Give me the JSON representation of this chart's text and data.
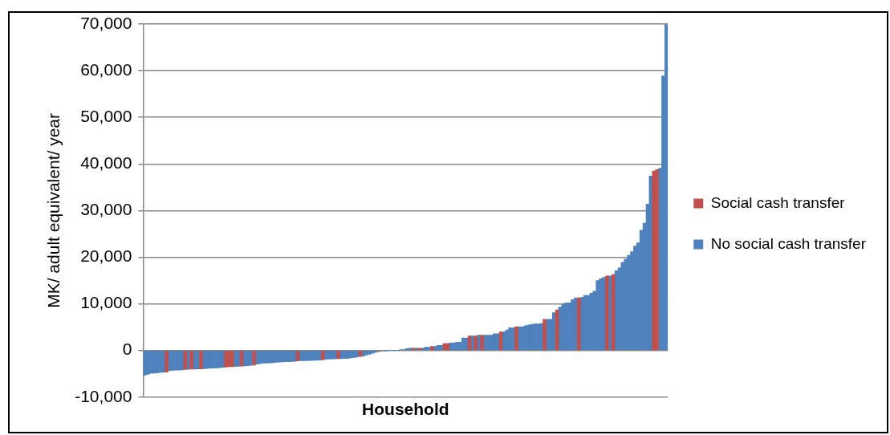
{
  "chart_data": {
    "type": "bar",
    "xlabel": "Household",
    "ylabel": "MK/ adult equivalent/ year",
    "categories": [
      null,
      null,
      null,
      null,
      null,
      null,
      null,
      null,
      null,
      null,
      null,
      null,
      null,
      null,
      null,
      null,
      null,
      null,
      null,
      null,
      null,
      null,
      null,
      null,
      null,
      null,
      null,
      null,
      null,
      null,
      null,
      null,
      null,
      null,
      null,
      null,
      null,
      null,
      null,
      null,
      null,
      null,
      null,
      null,
      null,
      null,
      null,
      null,
      null,
      null,
      null,
      null,
      null,
      null,
      null,
      null,
      null,
      null,
      null,
      null,
      null,
      null,
      null,
      null,
      null,
      null,
      null,
      null,
      null,
      null,
      null,
      null,
      null,
      null,
      null,
      null,
      null,
      null,
      null,
      null,
      null,
      null,
      null,
      null,
      null,
      null,
      null,
      null,
      null,
      null,
      null,
      null,
      null,
      null,
      null,
      null,
      null,
      null,
      null,
      null,
      null,
      null,
      null,
      null,
      null,
      null,
      null,
      null,
      null,
      null,
      null,
      null,
      null,
      null,
      null,
      null,
      null,
      null,
      null,
      null,
      null,
      null,
      null,
      null,
      null,
      null,
      null,
      null,
      null,
      null,
      null,
      null,
      null,
      null,
      null,
      null,
      null,
      null,
      null,
      null,
      null,
      null,
      null,
      null,
      null,
      null,
      null,
      null,
      null,
      null,
      null,
      null,
      null,
      null,
      null,
      null,
      null,
      null,
      null,
      null,
      null,
      null,
      null,
      null,
      null,
      null,
      null,
      null
    ],
    "series": [
      {
        "name": "Social cash transfer",
        "color": "#c0504d",
        "values": [
          null,
          null,
          null,
          null,
          null,
          null,
          null,
          -4650,
          null,
          null,
          null,
          null,
          null,
          -4100,
          null,
          -4000,
          null,
          null,
          -3950,
          null,
          null,
          null,
          null,
          null,
          null,
          null,
          -3550,
          -3500,
          -3500,
          null,
          null,
          -3350,
          null,
          null,
          null,
          -3150,
          null,
          null,
          null,
          null,
          null,
          null,
          null,
          null,
          null,
          null,
          null,
          null,
          null,
          -2250,
          null,
          null,
          null,
          null,
          null,
          null,
          null,
          -2000,
          null,
          null,
          null,
          null,
          -1750,
          null,
          null,
          null,
          null,
          null,
          null,
          -1300,
          null,
          null,
          null,
          null,
          null,
          -200,
          null,
          null,
          null,
          null,
          null,
          null,
          null,
          null,
          null,
          null,
          500,
          null,
          500,
          null,
          null,
          null,
          900,
          null,
          null,
          null,
          1500,
          1500,
          null,
          null,
          null,
          null,
          null,
          null,
          3100,
          null,
          3100,
          null,
          3300,
          null,
          null,
          null,
          null,
          null,
          4000,
          null,
          null,
          null,
          null,
          5100,
          null,
          null,
          null,
          null,
          null,
          null,
          null,
          null,
          6700,
          null,
          null,
          null,
          8700,
          null,
          null,
          null,
          null,
          null,
          null,
          11300,
          null,
          null,
          null,
          null,
          null,
          null,
          null,
          null,
          16000,
          null,
          16300,
          null,
          null,
          null,
          null,
          null,
          null,
          null,
          null,
          null,
          null,
          null,
          null,
          38500,
          38800,
          null,
          null,
          null
        ]
      },
      {
        "name": "No social cash transfer",
        "color": "#4f81bd",
        "values": [
          -5300,
          -5100,
          -4900,
          -4850,
          -4800,
          -4700,
          -4700,
          null,
          -4300,
          -4250,
          -4200,
          -4200,
          -4150,
          null,
          -4050,
          null,
          -4000,
          -3950,
          null,
          -3900,
          -3850,
          -3800,
          -3800,
          -3750,
          -3700,
          -3600,
          null,
          null,
          null,
          -3450,
          -3400,
          null,
          -3300,
          -3250,
          -3200,
          null,
          -2900,
          -2800,
          -2700,
          -2700,
          -2650,
          -2600,
          -2550,
          -2500,
          -2450,
          -2400,
          -2400,
          -2350,
          -2300,
          null,
          -2200,
          -2200,
          -2150,
          -2150,
          -2100,
          -2100,
          -2050,
          null,
          -1900,
          -1850,
          -1800,
          -1800,
          null,
          -1750,
          -1700,
          -1700,
          -1600,
          -1500,
          -1400,
          null,
          -1200,
          -1000,
          -800,
          -600,
          -400,
          null,
          -100,
          -50,
          0,
          0,
          0,
          0,
          200,
          200,
          400,
          500,
          null,
          500,
          null,
          500,
          700,
          700,
          null,
          900,
          1100,
          1100,
          null,
          null,
          1600,
          1600,
          1800,
          1800,
          2700,
          2700,
          null,
          3100,
          null,
          3300,
          null,
          3300,
          3300,
          3300,
          3600,
          3600,
          null,
          4000,
          4400,
          4900,
          4900,
          null,
          5100,
          5100,
          5300,
          5500,
          5600,
          5700,
          5700,
          5800,
          null,
          6700,
          6700,
          8100,
          null,
          9300,
          9900,
          10200,
          10200,
          10900,
          11300,
          null,
          11400,
          11800,
          11800,
          12300,
          12700,
          15000,
          15400,
          15700,
          null,
          16000,
          null,
          17100,
          17700,
          18900,
          19600,
          20400,
          21200,
          22400,
          23100,
          25800,
          27300,
          31400,
          37400,
          null,
          null,
          39100,
          58900,
          69900
        ]
      }
    ],
    "stacked": true,
    "ylim": [
      -10000,
      70000
    ],
    "yticks": [
      {
        "value": -10000,
        "label": "-10,000"
      },
      {
        "value": 0,
        "label": "0"
      },
      {
        "value": 10000,
        "label": "10,000"
      },
      {
        "value": 20000,
        "label": "20,000"
      },
      {
        "value": 30000,
        "label": "30,000"
      },
      {
        "value": 40000,
        "label": "40,000"
      },
      {
        "value": 50000,
        "label": "50,000"
      },
      {
        "value": 60000,
        "label": "60,000"
      },
      {
        "value": 70000,
        "label": "70,000"
      }
    ],
    "grid": "y",
    "legend": "right",
    "tick_labels": "y"
  }
}
